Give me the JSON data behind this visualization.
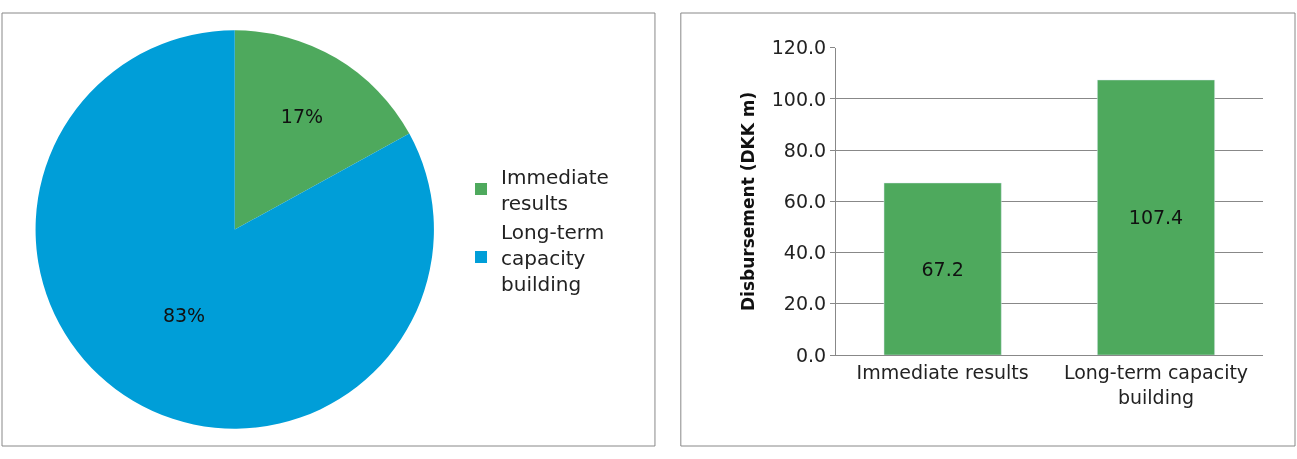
{
  "chart_data": [
    {
      "type": "pie",
      "categories": [
        "Immediate results",
        "Long-term capacity building"
      ],
      "values": [
        17,
        83
      ],
      "value_labels": [
        "17%",
        "83%"
      ],
      "colors": [
        "#4ea95d",
        "#009ed8"
      ],
      "legend": "right"
    },
    {
      "type": "bar",
      "categories": [
        "Immediate results",
        "Long-term capacity building"
      ],
      "values": [
        67.2,
        107.4
      ],
      "color": "#4ea95d",
      "ylabel": "Disbursement (DKK m)",
      "ylim": [
        0,
        120
      ],
      "yticks": [
        {
          "value": 0,
          "label": "0.0"
        },
        {
          "value": 20,
          "label": "20.0"
        },
        {
          "value": 40,
          "label": "40.0"
        },
        {
          "value": 60,
          "label": "60.0"
        },
        {
          "value": 80,
          "label": "80.0"
        },
        {
          "value": 100,
          "label": "100.0"
        },
        {
          "value": 120,
          "label": "120.0"
        }
      ],
      "grid": "y",
      "data_labels": true
    }
  ]
}
